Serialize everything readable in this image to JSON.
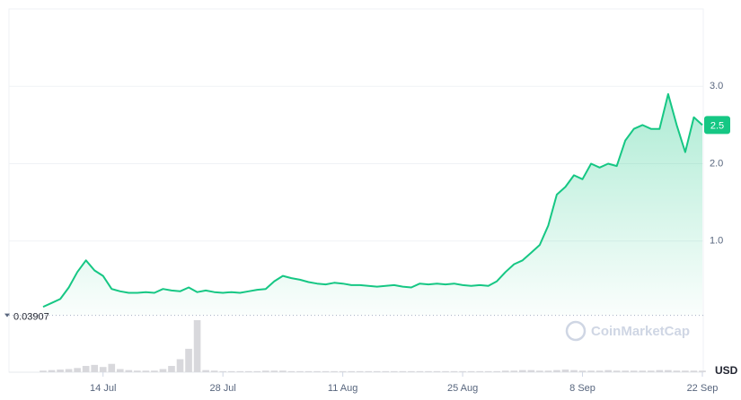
{
  "chart_data": {
    "type": "area-line",
    "x": [
      "7 Jul",
      "8 Jul",
      "9 Jul",
      "10 Jul",
      "11 Jul",
      "12 Jul",
      "13 Jul",
      "14 Jul",
      "15 Jul",
      "16 Jul",
      "17 Jul",
      "18 Jul",
      "19 Jul",
      "20 Jul",
      "21 Jul",
      "22 Jul",
      "23 Jul",
      "24 Jul",
      "25 Jul",
      "26 Jul",
      "27 Jul",
      "28 Jul",
      "29 Jul",
      "30 Jul",
      "31 Jul",
      "1 Aug",
      "2 Aug",
      "3 Aug",
      "4 Aug",
      "5 Aug",
      "6 Aug",
      "7 Aug",
      "8 Aug",
      "9 Aug",
      "10 Aug",
      "11 Aug",
      "12 Aug",
      "13 Aug",
      "14 Aug",
      "15 Aug",
      "16 Aug",
      "17 Aug",
      "18 Aug",
      "19 Aug",
      "20 Aug",
      "21 Aug",
      "22 Aug",
      "23 Aug",
      "24 Aug",
      "25 Aug",
      "26 Aug",
      "27 Aug",
      "28 Aug",
      "29 Aug",
      "30 Aug",
      "31 Aug",
      "1 Sep",
      "2 Sep",
      "3 Sep",
      "4 Sep",
      "5 Sep",
      "6 Sep",
      "7 Sep",
      "8 Sep",
      "9 Sep",
      "10 Sep",
      "11 Sep",
      "12 Sep",
      "13 Sep",
      "14 Sep",
      "15 Sep",
      "16 Sep",
      "17 Sep",
      "18 Sep",
      "19 Sep",
      "20 Sep",
      "21 Sep",
      "22 Sep"
    ],
    "series": [
      {
        "name": "Price",
        "color": "#16c784",
        "values": [
          0.15,
          0.2,
          0.25,
          0.4,
          0.6,
          0.75,
          0.62,
          0.55,
          0.38,
          0.35,
          0.33,
          0.33,
          0.34,
          0.33,
          0.38,
          0.36,
          0.35,
          0.4,
          0.34,
          0.36,
          0.34,
          0.33,
          0.34,
          0.33,
          0.35,
          0.37,
          0.38,
          0.48,
          0.55,
          0.52,
          0.5,
          0.47,
          0.45,
          0.44,
          0.46,
          0.45,
          0.43,
          0.43,
          0.42,
          0.41,
          0.42,
          0.43,
          0.41,
          0.4,
          0.45,
          0.44,
          0.45,
          0.44,
          0.45,
          0.43,
          0.42,
          0.43,
          0.42,
          0.48,
          0.6,
          0.7,
          0.75,
          0.85,
          0.95,
          1.2,
          1.6,
          1.7,
          1.85,
          1.8,
          2.0,
          1.95,
          2.0,
          1.97,
          2.3,
          2.45,
          2.5,
          2.45,
          2.45,
          2.9,
          2.5,
          2.15,
          2.6,
          2.5
        ]
      },
      {
        "name": "Volume",
        "color": "#d8d8dc",
        "axis": "y2",
        "values": [
          3,
          4,
          5,
          6,
          8,
          12,
          14,
          10,
          16,
          6,
          4,
          3,
          3,
          3,
          6,
          12,
          25,
          45,
          100,
          4,
          3,
          2,
          2,
          2,
          2,
          2,
          3,
          3,
          3,
          2,
          2,
          2,
          2,
          2,
          2,
          2,
          2,
          2,
          2,
          2,
          2,
          2,
          2,
          2,
          2,
          2,
          2,
          2,
          2,
          2,
          2,
          2,
          2,
          2,
          3,
          3,
          4,
          4,
          3,
          3,
          4,
          5,
          4,
          3,
          3,
          3,
          4,
          3,
          3,
          3,
          3,
          3,
          4,
          4,
          3,
          3,
          3,
          3
        ]
      }
    ],
    "ylim": [
      0,
      4.0
    ],
    "yticks": [
      {
        "value": 1,
        "label": "1.0"
      },
      {
        "value": 2,
        "label": "2.0"
      },
      {
        "value": 3,
        "label": "3.0"
      }
    ],
    "y2lim": [
      0,
      100
    ],
    "xticks": [
      "14 Jul",
      "28 Jul",
      "11 Aug",
      "25 Aug",
      "8 Sep",
      "22 Sep"
    ],
    "current_price": 2.5,
    "baseline": 0.03907,
    "watermark": "CoinMarketCap",
    "currency": "USD",
    "grid": true
  }
}
